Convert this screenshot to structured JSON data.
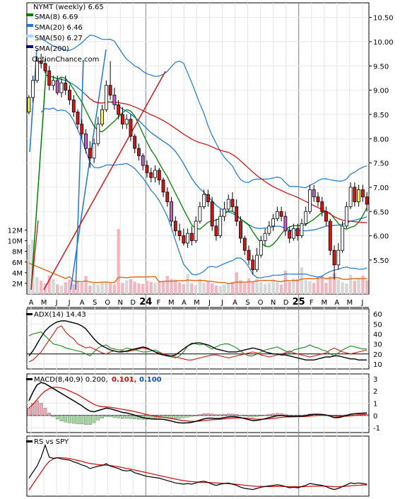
{
  "chart_data": {
    "type": "candlestick",
    "symbol_label": "NYMT (weekly) 6.65",
    "watermark": "OptionChance.com",
    "legend": [
      {
        "label": "SMA(8) 6.69",
        "color": "#008000"
      },
      {
        "label": "SMA(20) 6.46",
        "color": "#1e78d0"
      },
      {
        "label": "SMA(50) 6.27",
        "color": "#a8d8f0"
      },
      {
        "label": "SMA(200)",
        "color": "#000080"
      }
    ],
    "price_axis": {
      "ylim": [
        4.8,
        10.8
      ],
      "ticks": [
        "10.50",
        "10.00",
        "9.50",
        "9.00",
        "8.50",
        "8.00",
        "7.50",
        "7.00",
        "6.50",
        "6.00",
        "5.50"
      ]
    },
    "volume_axis": {
      "ylim": [
        0,
        13
      ],
      "ticks": [
        "12M",
        "10M",
        "8M",
        "6M",
        "4M",
        "2M"
      ]
    },
    "x_labels": [
      "A",
      "M",
      "J",
      "J",
      "A",
      "S",
      "O",
      "N",
      "D",
      "24",
      "F",
      "M",
      "A",
      "M",
      "J",
      "J",
      "A",
      "S",
      "O",
      "N",
      "D",
      "25",
      "F",
      "M",
      "A",
      "M",
      "J"
    ],
    "candles": [
      [
        8.55,
        8.85,
        8.5,
        8.9
      ],
      [
        8.85,
        9.2,
        8.75,
        9.3
      ],
      [
        9.2,
        9.6,
        9.15,
        9.7
      ],
      [
        9.6,
        9.55,
        9.45,
        9.75
      ],
      [
        9.55,
        9.4,
        9.35,
        9.65
      ],
      [
        9.4,
        9.1,
        9.0,
        9.5
      ],
      [
        9.1,
        9.2,
        9.0,
        9.3
      ],
      [
        9.2,
        8.95,
        8.9,
        9.3
      ],
      [
        8.95,
        9.15,
        8.85,
        9.25
      ],
      [
        9.15,
        9.0,
        8.9,
        9.3
      ],
      [
        9.0,
        8.8,
        8.7,
        9.1
      ],
      [
        8.8,
        8.55,
        8.45,
        8.9
      ],
      [
        8.55,
        8.3,
        8.2,
        8.6
      ],
      [
        8.3,
        8.1,
        8.0,
        8.4
      ],
      [
        8.1,
        7.8,
        7.7,
        8.2
      ],
      [
        7.8,
        7.6,
        7.4,
        7.95
      ],
      [
        7.6,
        7.9,
        7.5,
        8.0
      ],
      [
        7.9,
        8.3,
        7.85,
        8.45
      ],
      [
        8.3,
        8.6,
        8.25,
        8.7
      ],
      [
        8.6,
        9.1,
        8.55,
        9.2
      ],
      [
        9.1,
        8.9,
        8.8,
        9.6
      ],
      [
        8.9,
        8.7,
        8.6,
        9.05
      ],
      [
        8.7,
        8.5,
        8.4,
        8.8
      ],
      [
        8.5,
        8.3,
        8.2,
        8.65
      ],
      [
        8.3,
        8.4,
        8.2,
        8.5
      ],
      [
        8.4,
        8.05,
        7.95,
        8.5
      ],
      [
        8.05,
        7.8,
        7.7,
        8.1
      ],
      [
        7.8,
        7.65,
        7.55,
        7.9
      ],
      [
        7.65,
        7.45,
        7.35,
        7.7
      ],
      [
        7.45,
        7.3,
        7.2,
        7.55
      ],
      [
        7.3,
        7.2,
        7.1,
        7.4
      ],
      [
        7.2,
        7.35,
        7.1,
        7.45
      ],
      [
        7.35,
        7.15,
        7.05,
        7.4
      ],
      [
        7.15,
        6.9,
        6.8,
        7.2
      ],
      [
        6.9,
        6.7,
        6.6,
        7.0
      ],
      [
        6.7,
        6.3,
        6.2,
        6.8
      ],
      [
        6.3,
        6.1,
        6.0,
        6.4
      ],
      [
        6.1,
        6.0,
        5.9,
        6.25
      ],
      [
        6.0,
        5.85,
        5.8,
        6.15
      ],
      [
        5.85,
        6.05,
        5.75,
        6.15
      ],
      [
        6.05,
        5.9,
        5.8,
        6.2
      ],
      [
        5.9,
        6.3,
        5.85,
        6.4
      ],
      [
        6.3,
        6.6,
        6.25,
        6.7
      ],
      [
        6.6,
        6.85,
        6.55,
        6.95
      ],
      [
        6.85,
        6.7,
        6.6,
        6.95
      ],
      [
        6.7,
        6.2,
        6.1,
        6.8
      ],
      [
        6.2,
        6.0,
        5.9,
        6.35
      ],
      [
        6.0,
        6.4,
        5.95,
        6.55
      ],
      [
        6.4,
        6.55,
        6.3,
        6.7
      ],
      [
        6.55,
        6.75,
        6.5,
        6.85
      ],
      [
        6.75,
        6.6,
        6.5,
        6.9
      ],
      [
        6.6,
        6.3,
        6.2,
        6.75
      ],
      [
        6.3,
        5.95,
        5.85,
        6.4
      ],
      [
        5.95,
        5.7,
        5.6,
        6.0
      ],
      [
        5.7,
        5.5,
        5.4,
        5.8
      ],
      [
        5.5,
        5.3,
        5.2,
        5.6
      ],
      [
        5.3,
        5.6,
        5.25,
        5.75
      ],
      [
        5.6,
        5.9,
        5.55,
        6.0
      ],
      [
        5.9,
        6.05,
        5.8,
        6.15
      ],
      [
        6.05,
        6.2,
        6.0,
        6.3
      ],
      [
        6.2,
        6.35,
        6.1,
        6.45
      ],
      [
        6.35,
        6.5,
        6.3,
        6.6
      ],
      [
        6.5,
        6.4,
        6.3,
        6.6
      ],
      [
        6.4,
        6.1,
        6.0,
        6.5
      ],
      [
        6.1,
        5.95,
        5.85,
        6.2
      ],
      [
        5.95,
        6.15,
        5.9,
        6.25
      ],
      [
        6.15,
        6.0,
        5.9,
        6.25
      ],
      [
        6.0,
        6.25,
        5.95,
        6.35
      ],
      [
        6.25,
        6.5,
        6.2,
        6.6
      ],
      [
        6.5,
        6.95,
        6.45,
        7.05
      ],
      [
        6.95,
        6.8,
        6.7,
        7.05
      ],
      [
        6.8,
        6.7,
        6.6,
        6.9
      ],
      [
        6.7,
        6.5,
        6.4,
        6.8
      ],
      [
        6.5,
        6.3,
        6.2,
        6.6
      ],
      [
        6.3,
        5.7,
        5.6,
        6.35
      ],
      [
        5.7,
        5.4,
        5.1,
        5.8
      ],
      [
        5.4,
        5.7,
        5.3,
        5.85
      ],
      [
        5.7,
        6.2,
        5.65,
        6.3
      ],
      [
        6.2,
        6.6,
        6.15,
        6.7
      ],
      [
        6.6,
        7.0,
        6.55,
        7.1
      ],
      [
        7.0,
        6.7,
        6.6,
        7.1
      ],
      [
        6.7,
        6.95,
        6.6,
        7.05
      ],
      [
        6.95,
        6.8,
        6.7,
        7.05
      ],
      [
        6.8,
        6.65,
        6.5,
        6.9
      ]
    ],
    "volume": [
      9.3,
      10.2,
      3.2,
      2.5,
      2.0,
      3.5,
      2.8,
      1.8,
      1.6,
      2.2,
      2.7,
      1.9,
      2.5,
      2.1,
      3.4,
      1.6,
      2.0,
      1.7,
      2.3,
      2.2,
      2.0,
      1.8,
      12.2,
      2.1,
      2.6,
      2.8,
      2.3,
      2.0,
      1.9,
      2.5,
      2.3,
      2.1,
      2.4,
      2.5,
      3.4,
      2.8,
      2.7,
      2.2,
      1.9,
      3.8,
      2.0,
      1.7,
      2.8,
      2.1,
      2.3,
      2.0,
      1.6,
      1.5,
      1.8,
      2.0,
      2.3,
      4.1,
      2.6,
      2.0,
      2.9,
      2.4,
      3.0,
      2.2,
      1.9,
      2.1,
      2.6,
      2.2,
      1.8,
      4.4,
      2.3,
      2.9,
      2.8,
      5.0,
      2.6,
      2.4,
      2.1,
      3.1,
      3.5,
      2.1,
      3.3,
      3.9,
      2.7,
      2.2,
      2.0,
      3.6,
      2.5,
      3.0,
      3.5,
      2.6
    ],
    "adx": {
      "label": "ADX(14) 14.43",
      "ylim": [
        5,
        65
      ],
      "ticks": [
        "60",
        "50",
        "40",
        "30",
        "20",
        "10"
      ],
      "adx": [
        18,
        23,
        30,
        37,
        43,
        47,
        50,
        52,
        53,
        53,
        52,
        51,
        50,
        48,
        45,
        40,
        35,
        31,
        28,
        26,
        24,
        23,
        22,
        22,
        23,
        24,
        25,
        26,
        27,
        26,
        24,
        22,
        20,
        19,
        18,
        18,
        19,
        22,
        25,
        28,
        30,
        31,
        31,
        30,
        29,
        27,
        25,
        24,
        23,
        22,
        22,
        22,
        23,
        24,
        25,
        26,
        25,
        24,
        22,
        21,
        20,
        20,
        19,
        19,
        18,
        17,
        16,
        15,
        14,
        14,
        14,
        15,
        16,
        17,
        17,
        18,
        18,
        17,
        16,
        15,
        15,
        14,
        14,
        14
      ],
      "plus_di": [
        38,
        40,
        41,
        42,
        38,
        34,
        30,
        29,
        28,
        26,
        25,
        24,
        23,
        22,
        20,
        18,
        22,
        26,
        28,
        29,
        26,
        25,
        24,
        24,
        26,
        25,
        24,
        23,
        22,
        22,
        23,
        24,
        22,
        20,
        18,
        17,
        16,
        18,
        22,
        28,
        31,
        30,
        29,
        30,
        27,
        25,
        27,
        29,
        30,
        30,
        28,
        26,
        23,
        20,
        18,
        18,
        20,
        22,
        24,
        25,
        26,
        27,
        25,
        23,
        21,
        24,
        25,
        26,
        27,
        29,
        27,
        26,
        24,
        23,
        20,
        18,
        21,
        24,
        26,
        28,
        27,
        26,
        25,
        25
      ],
      "minus_di": [
        12,
        14,
        18,
        22,
        28,
        34,
        40,
        46,
        48,
        42,
        38,
        35,
        30,
        28,
        26,
        27,
        25,
        23,
        21,
        20,
        22,
        23,
        22,
        23,
        22,
        23,
        24,
        25,
        26,
        25,
        24,
        22,
        21,
        20,
        19,
        18,
        17,
        16,
        15,
        14,
        14,
        15,
        16,
        17,
        18,
        19,
        19,
        18,
        17,
        16,
        17,
        18,
        19,
        20,
        21,
        22,
        21,
        19,
        18,
        17,
        18,
        19,
        20,
        21,
        23,
        21,
        20,
        19,
        18,
        17,
        18,
        19,
        20,
        21,
        24,
        26,
        24,
        22,
        21,
        20,
        21,
        22,
        23,
        24
      ]
    },
    "macd": {
      "label": "MACD(8,40,9) 0.200,",
      "signal_label": "0.101,",
      "hist_label": "0.100",
      "ylim": [
        -1.4,
        3.4
      ],
      "ticks": [
        "3",
        "2",
        "1",
        "0",
        "-1"
      ],
      "macd": [
        1.2,
        1.9,
        2.5,
        2.7,
        2.6,
        2.4,
        2.2,
        2.0,
        1.8,
        1.6,
        1.4,
        1.2,
        1.0,
        0.8,
        0.55,
        0.35,
        0.3,
        0.4,
        0.5,
        0.6,
        0.55,
        0.45,
        0.35,
        0.25,
        0.2,
        0.12,
        0.02,
        -0.08,
        -0.18,
        -0.24,
        -0.28,
        -0.3,
        -0.3,
        -0.32,
        -0.38,
        -0.46,
        -0.55,
        -0.6,
        -0.62,
        -0.6,
        -0.56,
        -0.48,
        -0.38,
        -0.28,
        -0.22,
        -0.22,
        -0.26,
        -0.24,
        -0.18,
        -0.12,
        -0.1,
        -0.12,
        -0.18,
        -0.26,
        -0.34,
        -0.42,
        -0.4,
        -0.34,
        -0.26,
        -0.18,
        -0.1,
        -0.02,
        0.0,
        -0.04,
        -0.08,
        -0.08,
        -0.09,
        -0.07,
        -0.02,
        0.06,
        0.1,
        0.1,
        0.08,
        0.04,
        -0.06,
        -0.18,
        -0.18,
        -0.1,
        0.0,
        0.1,
        0.14,
        0.17,
        0.19,
        0.2
      ],
      "signal": [
        0.6,
        0.9,
        1.3,
        1.7,
        2.0,
        2.2,
        2.3,
        2.3,
        2.25,
        2.15,
        2.0,
        1.85,
        1.7,
        1.5,
        1.3,
        1.1,
        0.9,
        0.78,
        0.72,
        0.7,
        0.67,
        0.62,
        0.56,
        0.5,
        0.44,
        0.38,
        0.31,
        0.23,
        0.15,
        0.07,
        0.0,
        -0.06,
        -0.11,
        -0.15,
        -0.2,
        -0.25,
        -0.31,
        -0.37,
        -0.42,
        -0.46,
        -0.48,
        -0.48,
        -0.46,
        -0.42,
        -0.38,
        -0.35,
        -0.33,
        -0.31,
        -0.28,
        -0.25,
        -0.22,
        -0.2,
        -0.2,
        -0.21,
        -0.24,
        -0.28,
        -0.3,
        -0.31,
        -0.3,
        -0.28,
        -0.24,
        -0.2,
        -0.16,
        -0.13,
        -0.12,
        -0.11,
        -0.1,
        -0.1,
        -0.08,
        -0.05,
        -0.02,
        0.0,
        0.02,
        0.02,
        0.0,
        -0.03,
        -0.06,
        -0.07,
        -0.06,
        -0.03,
        0.0,
        0.04,
        0.07,
        0.1
      ]
    },
    "rs": {
      "label": "RS vs SPY",
      "ylim": [
        0,
        10
      ],
      "rs": [
        3,
        4,
        5,
        6.5,
        8.5,
        6.5,
        6.3,
        6.4,
        6.2,
        6.1,
        6.0,
        5.7,
        5.5,
        5.2,
        5.0,
        4.6,
        4.8,
        5.0,
        5.1,
        5.4,
        5.0,
        4.8,
        4.6,
        4.3,
        4.2,
        4.3,
        3.9,
        3.7,
        3.5,
        3.3,
        3.2,
        3.1,
        3.0,
        2.8,
        2.6,
        2.4,
        2.2,
        2.1,
        2.0,
        2.1,
        2.0,
        2.2,
        2.4,
        2.5,
        2.3,
        2.0,
        1.8,
        2.0,
        2.1,
        2.2,
        2.0,
        1.8,
        1.5,
        1.3,
        1.2,
        1.1,
        1.3,
        1.5,
        1.6,
        1.7,
        1.8,
        1.9,
        1.8,
        1.6,
        1.4,
        1.5,
        1.4,
        1.6,
        1.8,
        2.1,
        2.0,
        1.9,
        1.8,
        1.6,
        1.3,
        1.1,
        1.3,
        1.6,
        1.9,
        2.2,
        2.1,
        2.2,
        2.1,
        2.0
      ],
      "ma": [
        1,
        2,
        3,
        4,
        5,
        5.8,
        6.2,
        6.4,
        6.4,
        6.35,
        6.25,
        6.1,
        5.95,
        5.8,
        5.6,
        5.45,
        5.35,
        5.25,
        5.2,
        5.15,
        5.1,
        5.0,
        4.9,
        4.75,
        4.6,
        4.5,
        4.35,
        4.2,
        4.05,
        3.9,
        3.75,
        3.6,
        3.45,
        3.3,
        3.15,
        3.0,
        2.85,
        2.7,
        2.6,
        2.5,
        2.42,
        2.36,
        2.32,
        2.3,
        2.28,
        2.24,
        2.2,
        2.16,
        2.12,
        2.08,
        2.04,
        1.98,
        1.9,
        1.82,
        1.75,
        1.68,
        1.64,
        1.62,
        1.6,
        1.6,
        1.61,
        1.62,
        1.62,
        1.6,
        1.58,
        1.57,
        1.56,
        1.57,
        1.6,
        1.64,
        1.66,
        1.68,
        1.68,
        1.66,
        1.62,
        1.58,
        1.57,
        1.6,
        1.66,
        1.72,
        1.78,
        1.82,
        1.86,
        1.88
      ]
    }
  }
}
